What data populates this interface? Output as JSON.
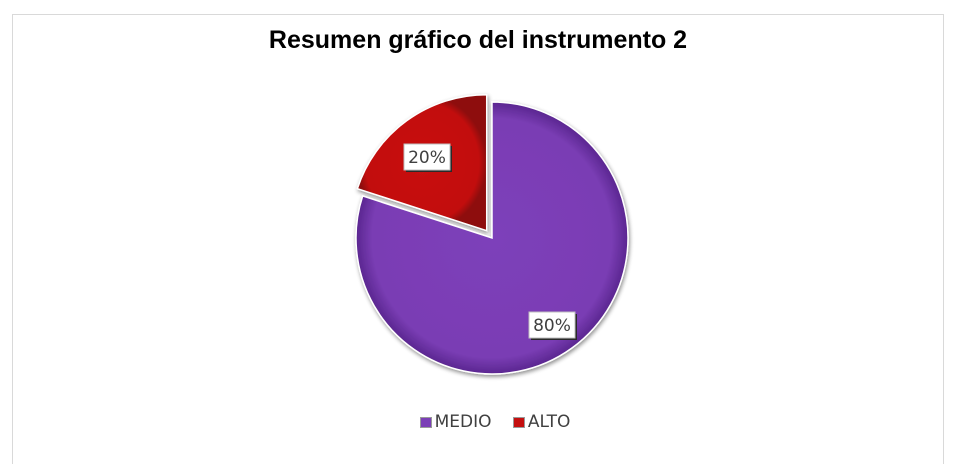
{
  "chart_data": {
    "type": "pie",
    "title": "Resumen gráfico del instrumento 2",
    "categories": [
      "MEDIO",
      "ALTO"
    ],
    "values": [
      80,
      20
    ],
    "labels": [
      "80%",
      "20%"
    ],
    "colors": [
      "#7B3FB6",
      "#C40F0F"
    ],
    "legend_position": "bottom"
  }
}
